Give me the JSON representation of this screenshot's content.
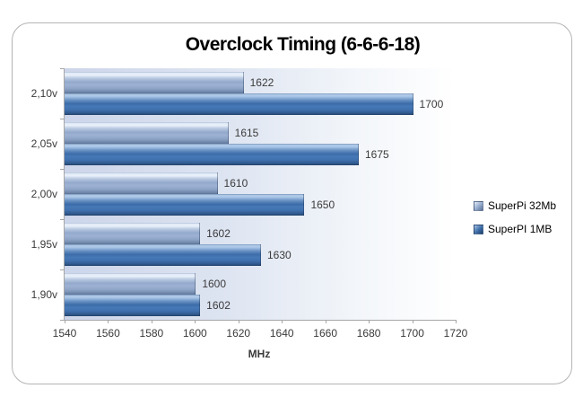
{
  "title": "Overclock Timing (6-6-6-18)",
  "chart_data": {
    "type": "bar",
    "orientation": "horizontal",
    "title": "Overclock Timing (6-6-6-18)",
    "xlabel": "MHz",
    "ylabel": "",
    "categories": [
      "2,10v",
      "2,05v",
      "2,00v",
      "1,95v",
      "1,90v"
    ],
    "series": [
      {
        "name": "SuperPi 32Mb",
        "color": "#93a9cc",
        "values": [
          1622,
          1615,
          1610,
          1602,
          1600
        ]
      },
      {
        "name": "SuperPI 1MB",
        "color": "#3c6ca8",
        "values": [
          1700,
          1675,
          1650,
          1630,
          1602
        ]
      }
    ],
    "xlim": [
      1540,
      1720
    ],
    "xticks": [
      1540,
      1560,
      1580,
      1600,
      1620,
      1640,
      1660,
      1680,
      1700,
      1720
    ],
    "grid": false,
    "legend_position": "right",
    "data_labels": true,
    "plot_bg_gradient": [
      "#ccd5ea",
      "#ffffff"
    ],
    "axis_color": "#a6a6a6",
    "text_color": "#3a3a3a",
    "frame_border_color": "#b4b4b4"
  }
}
